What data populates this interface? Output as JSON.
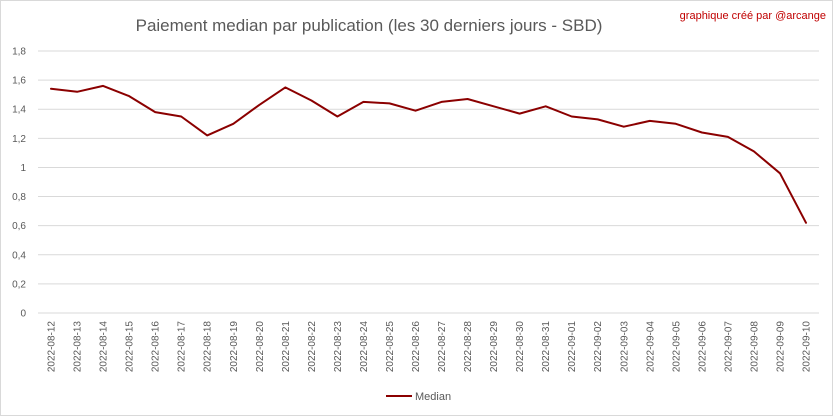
{
  "chart_data": {
    "type": "line",
    "title": "Paiement median par publication (les 30 derniers jours - SBD)",
    "credit": "graphique créé par @arcange",
    "xlabel": "",
    "ylabel": "",
    "ylim": [
      0,
      1.8
    ],
    "yticks": [
      "0",
      "0,2",
      "0,4",
      "0,6",
      "0,8",
      "1",
      "1,2",
      "1,4",
      "1,6",
      "1,8"
    ],
    "grid": true,
    "legend_position": "bottom",
    "categories": [
      "2022-08-12",
      "2022-08-13",
      "2022-08-14",
      "2022-08-15",
      "2022-08-16",
      "2022-08-17",
      "2022-08-18",
      "2022-08-19",
      "2022-08-20",
      "2022-08-21",
      "2022-08-22",
      "2022-08-23",
      "2022-08-24",
      "2022-08-25",
      "2022-08-26",
      "2022-08-27",
      "2022-08-28",
      "2022-08-29",
      "2022-08-30",
      "2022-08-31",
      "2022-09-01",
      "2022-09-02",
      "2022-09-03",
      "2022-09-04",
      "2022-09-05",
      "2022-09-06",
      "2022-09-07",
      "2022-09-08",
      "2022-09-09",
      "2022-09-10"
    ],
    "series": [
      {
        "name": "Median",
        "color": "#8b0000",
        "values": [
          1.54,
          1.52,
          1.56,
          1.49,
          1.38,
          1.35,
          1.22,
          1.3,
          1.43,
          1.55,
          1.46,
          1.35,
          1.45,
          1.44,
          1.39,
          1.45,
          1.47,
          1.42,
          1.37,
          1.42,
          1.35,
          1.33,
          1.28,
          1.32,
          1.3,
          1.24,
          1.21,
          1.11,
          0.96,
          0.62
        ]
      }
    ]
  }
}
